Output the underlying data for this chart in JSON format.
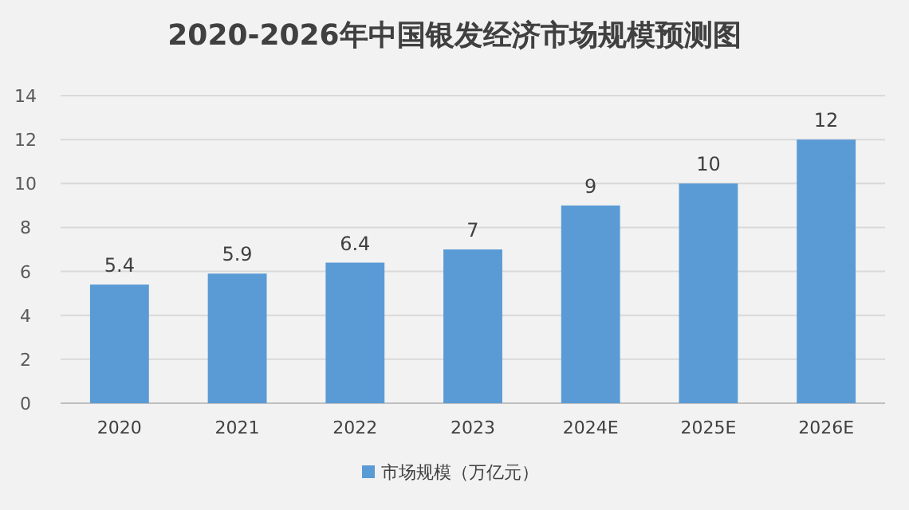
{
  "chart_data": {
    "type": "bar",
    "title": "2020-2026年中国银发经济市场规模预测图",
    "categories": [
      "2020",
      "2021",
      "2022",
      "2023",
      "2024E",
      "2025E",
      "2026E"
    ],
    "series": [
      {
        "name": "市场规模（万亿元）",
        "color": "#5b9bd5",
        "values": [
          5.4,
          5.9,
          6.4,
          7,
          9,
          10,
          12
        ]
      }
    ],
    "ylim": [
      0,
      14
    ],
    "yticks": [
      0,
      2,
      4,
      6,
      8,
      10,
      12,
      14
    ],
    "grid": "y",
    "data_labels": true,
    "legend": "bottom"
  }
}
